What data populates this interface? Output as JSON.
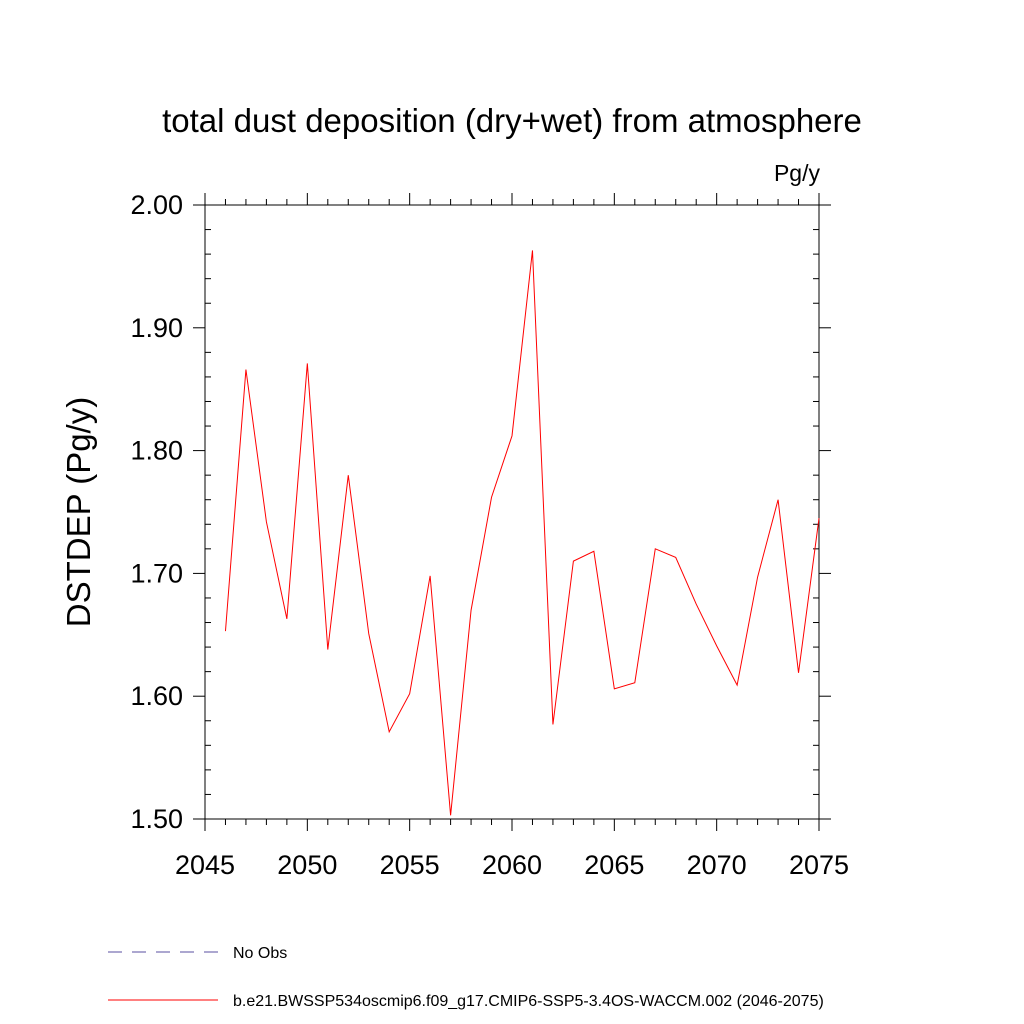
{
  "chart_data": {
    "type": "line",
    "title": "total dust deposition (dry+wet) from atmosphere",
    "units_label": "Pg/y",
    "ylabel": "DSTDEP  (Pg/y)",
    "xlabel": "",
    "xlim": [
      2045,
      2075
    ],
    "ylim": [
      1.5,
      2.0
    ],
    "x_ticks": [
      2045,
      2050,
      2055,
      2060,
      2065,
      2070,
      2075
    ],
    "x_tick_labels": [
      "2045",
      "2050",
      "2055",
      "2060",
      "2065",
      "2070",
      "2075"
    ],
    "y_ticks": [
      1.5,
      1.6,
      1.7,
      1.8,
      1.9,
      2.0
    ],
    "y_tick_labels": [
      "1.50",
      "1.60",
      "1.70",
      "1.80",
      "1.90",
      "2.00"
    ],
    "grid": false,
    "legend_position": "bottom",
    "series": [
      {
        "name": "No Obs",
        "color": "#5a4fa0",
        "dash": "dashed",
        "x": [],
        "values": []
      },
      {
        "name": "b.e21.BWSSP534oscmip6.f09_g17.CMIP6-SSP5-3.4OS-WACCM.002 (2046-2075)",
        "color": "#ff0000",
        "dash": "solid",
        "x": [
          2046,
          2047,
          2048,
          2049,
          2050,
          2051,
          2052,
          2053,
          2054,
          2055,
          2056,
          2057,
          2058,
          2059,
          2060,
          2061,
          2062,
          2063,
          2064,
          2065,
          2066,
          2067,
          2068,
          2069,
          2070,
          2071,
          2072,
          2073,
          2074,
          2075
        ],
        "values": [
          1.653,
          1.866,
          1.742,
          1.663,
          1.871,
          1.638,
          1.78,
          1.651,
          1.571,
          1.602,
          1.698,
          1.503,
          1.67,
          1.762,
          1.812,
          1.963,
          1.577,
          1.71,
          1.718,
          1.606,
          1.611,
          1.72,
          1.713,
          1.675,
          1.641,
          1.609,
          1.697,
          1.76,
          1.619,
          1.745
        ]
      }
    ]
  }
}
